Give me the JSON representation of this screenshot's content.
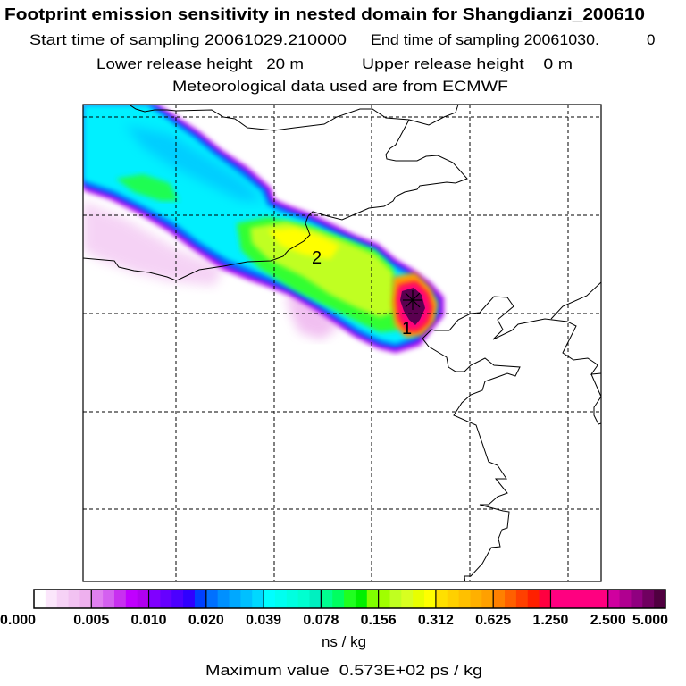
{
  "header": {
    "title": "Footprint emission sensitivity in nested domain for Shangdianzi_200610",
    "start_time": "Start time of sampling 20061029.210000",
    "end_time": "End time of sampling 20061030.",
    "end_time_suffix": "0",
    "lower_release": "Lower release height   20 m",
    "upper_release": "Upper release height    0 m",
    "met_data": "Meteorological data used are from ECMWF"
  },
  "footer": {
    "unit": "ns / kg",
    "max_value": "Maximum value  0.573E+02 ps / kg"
  },
  "chart_data": {
    "type": "heatmap",
    "title": "Footprint emission sensitivity in nested domain for Shangdianzi_200610",
    "colorbar": {
      "unit": "ns / kg",
      "tick_labels": [
        "0.000",
        "0.005",
        "0.010",
        "0.020",
        "0.039",
        "0.078",
        "0.156",
        "0.312",
        "0.625",
        "1.250",
        "2.500",
        "5.000"
      ],
      "segment_colors": [
        [
          "#ffffff",
          "#fbe6fb",
          "#f6d2f6",
          "#f2c2f2",
          "#eeb0ee"
        ],
        [
          "#e080f0",
          "#d460f0",
          "#c830f0",
          "#c000ff",
          "#b000f0"
        ],
        [
          "#8000ff",
          "#6600ff",
          "#4c00ff",
          "#3000ff",
          "#0040ff"
        ],
        [
          "#0070ff",
          "#0090ff",
          "#00a8ff",
          "#00c0ff",
          "#00d8ff"
        ],
        [
          "#00ffff",
          "#00fff0",
          "#00ffe0",
          "#00ffd0",
          "#00f0c0"
        ],
        [
          "#00ff90",
          "#00ff60",
          "#20ff20",
          "#00f000",
          "#80ff00"
        ],
        [
          "#a0ff00",
          "#c0ff20",
          "#d8ff20",
          "#e8ff00",
          "#ffff00"
        ],
        [
          "#ffe000",
          "#ffd000",
          "#ffc000",
          "#ffb000",
          "#ffa000"
        ],
        [
          "#ff8000",
          "#ff6000",
          "#ff4000",
          "#ff2000",
          "#ff0040"
        ],
        [
          "#ff0080",
          "#ff0080",
          "#ff0080",
          "#ff0080",
          "#ff0080"
        ],
        [
          "#d0009f",
          "#b00090",
          "#900080",
          "#700060",
          "#500040"
        ]
      ]
    },
    "contour_labels": [
      "2",
      "1"
    ],
    "maximum_value": "0.573E+02 ps / kg",
    "grid": true
  }
}
